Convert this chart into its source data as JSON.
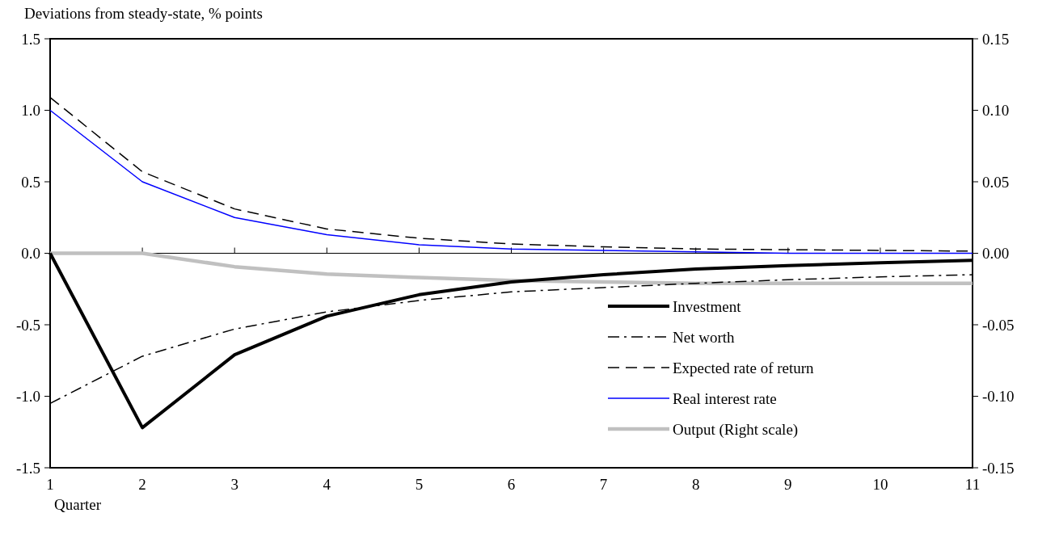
{
  "chart_data": {
    "type": "line",
    "ylabel": "Deviations from steady-state, % points",
    "xlabel": "Quarter",
    "x": [
      1,
      2,
      3,
      4,
      5,
      6,
      7,
      8,
      9,
      10,
      11
    ],
    "xlim": [
      1,
      11
    ],
    "xticks": [
      1,
      2,
      3,
      4,
      5,
      6,
      7,
      8,
      9,
      10,
      11
    ],
    "ylim": [
      -1.5,
      1.5
    ],
    "yticks": [
      {
        "value": -1.5,
        "label": "-1.5"
      },
      {
        "value": -1,
        "label": "-1.0"
      },
      {
        "value": -0.5,
        "label": "-0.5"
      },
      {
        "value": 0,
        "label": "0.0"
      },
      {
        "value": 0.5,
        "label": "0.5"
      },
      {
        "value": 1,
        "label": "1.0"
      },
      {
        "value": 1.5,
        "label": "1.5"
      }
    ],
    "y2lim": [
      -0.15,
      0.15
    ],
    "y2ticks": [
      {
        "value": -0.15,
        "label": "-0.15"
      },
      {
        "value": -0.1,
        "label": "-0.10"
      },
      {
        "value": -0.05,
        "label": "-0.05"
      },
      {
        "value": 0,
        "label": "0.00"
      },
      {
        "value": 0.05,
        "label": "0.05"
      },
      {
        "value": 0.1,
        "label": "0.10"
      },
      {
        "value": 0.15,
        "label": "0.15"
      }
    ],
    "legend": "bottom right",
    "series": [
      {
        "name": "Investment",
        "color": "#000000",
        "line_style": "solid",
        "values": [
          0,
          -1.22,
          -0.71,
          -0.44,
          -0.29,
          -0.2,
          -0.15,
          -0.11,
          -0.086,
          -0.066,
          -0.05
        ]
      },
      {
        "name": "Net worth",
        "color": "#000000",
        "line_style": "dashdot",
        "values": [
          -1.05,
          -0.72,
          -0.53,
          -0.41,
          -0.33,
          -0.27,
          -0.24,
          -0.21,
          -0.185,
          -0.165,
          -0.15
        ]
      },
      {
        "name": "Expected rate of return",
        "color": "#000000",
        "line_style": "dashed",
        "values": [
          1.09,
          0.57,
          0.31,
          0.17,
          0.105,
          0.065,
          0.045,
          0.03,
          0.025,
          0.02,
          0.015
        ]
      },
      {
        "name": "Real interest rate",
        "color": "#0000ff",
        "line_style": "solid",
        "values": [
          1.0,
          0.5,
          0.25,
          0.13,
          0.06,
          0.03,
          0.02,
          0.01,
          0,
          0,
          0
        ]
      },
      {
        "name": "Output (Right scale)",
        "color": "#c0c0c0",
        "line_style": "solid",
        "axis": "y2",
        "values": [
          0,
          0,
          -0.0094,
          -0.0145,
          -0.017,
          -0.019,
          -0.02,
          -0.021,
          -0.021,
          -0.021,
          -0.021
        ]
      }
    ]
  }
}
